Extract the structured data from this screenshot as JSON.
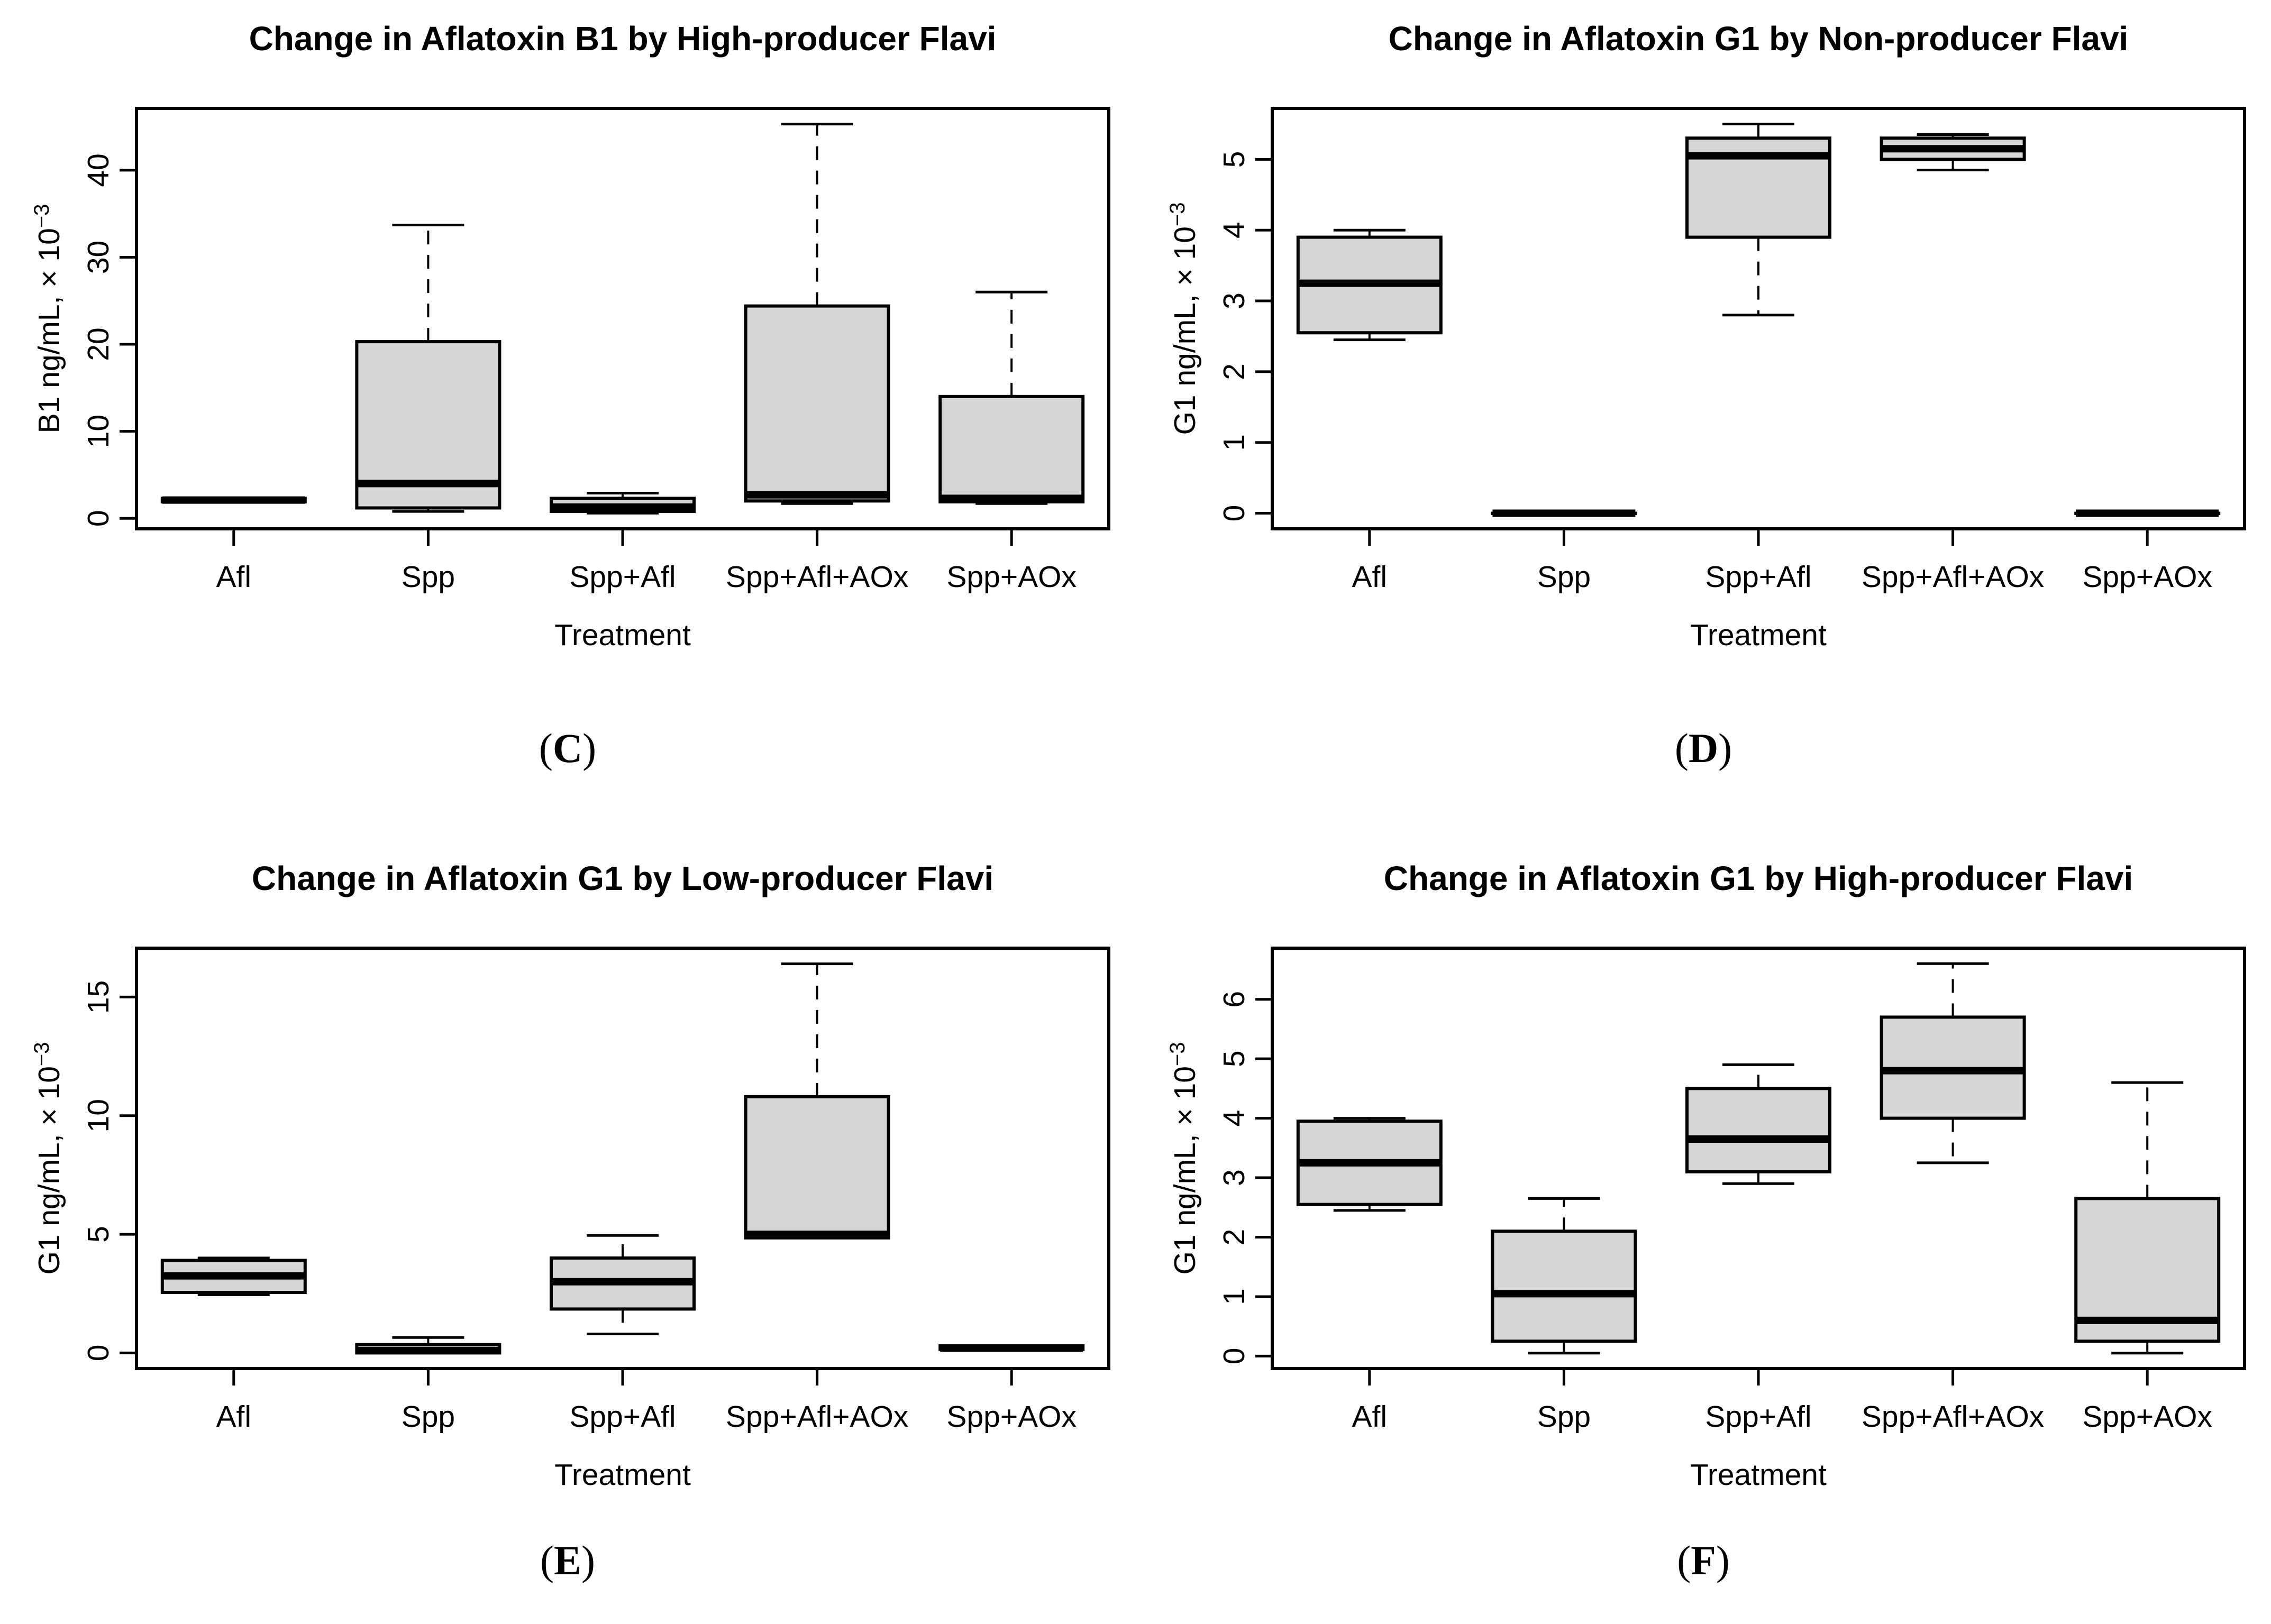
{
  "colors": {
    "background": "#ffffff",
    "box_fill": "#d6d6d6",
    "line": "#000000",
    "text": "#000000"
  },
  "chart_data": [
    {
      "id": "C",
      "type": "boxplot",
      "caption": {
        "open": "(",
        "letter": "C",
        "close": ")"
      },
      "title": "Change in Aflatoxin B1 by High-producer Flavi",
      "xlabel": "Treatment",
      "ylabel_prefix": "B1  ng/mL, × 10",
      "ylabel_exponent": "−3",
      "categories": [
        "Afl",
        "Spp",
        "Spp+Afl",
        "Spp+Afl+AOx",
        "Spp+AOx"
      ],
      "yticks": [
        0,
        10,
        20,
        30,
        40
      ],
      "ylim": [
        -1.2,
        47.1
      ],
      "grid": false,
      "boxes": [
        {
          "whisker_low": 1.9,
          "q1": 1.9,
          "median": 2.1,
          "q3": 2.3,
          "whisker_high": 2.3
        },
        {
          "whisker_low": 0.8,
          "q1": 1.2,
          "median": 4.0,
          "q3": 20.3,
          "whisker_high": 33.7
        },
        {
          "whisker_low": 0.6,
          "q1": 0.8,
          "median": 1.3,
          "q3": 2.3,
          "whisker_high": 2.9
        },
        {
          "whisker_low": 1.7,
          "q1": 2.0,
          "median": 2.7,
          "q3": 24.4,
          "whisker_high": 45.3
        },
        {
          "whisker_low": 1.7,
          "q1": 1.9,
          "median": 2.3,
          "q3": 14.0,
          "whisker_high": 26.0
        }
      ]
    },
    {
      "id": "D",
      "type": "boxplot",
      "caption": {
        "open": "(",
        "letter": "D",
        "close": ")"
      },
      "title": "Change in Aflatoxin G1 by Non-producer Flavi",
      "xlabel": "Treatment",
      "ylabel_prefix": "G1  ng/mL, × 10",
      "ylabel_exponent": "−3",
      "categories": [
        "Afl",
        "Spp",
        "Spp+Afl",
        "Spp+Afl+AOx",
        "Spp+AOx"
      ],
      "yticks": [
        0,
        1,
        2,
        3,
        4,
        5
      ],
      "ylim": [
        -0.22,
        5.72
      ],
      "grid": false,
      "boxes": [
        {
          "whisker_low": 2.45,
          "q1": 2.55,
          "median": 3.25,
          "q3": 3.9,
          "whisker_high": 4.0
        },
        {
          "whisker_low": 0.0,
          "q1": 0.0,
          "median": 0.0,
          "q3": 0.0,
          "whisker_high": 0.0
        },
        {
          "whisker_low": 2.8,
          "q1": 3.9,
          "median": 5.05,
          "q3": 5.3,
          "whisker_high": 5.5
        },
        {
          "whisker_low": 4.85,
          "q1": 5.0,
          "median": 5.15,
          "q3": 5.3,
          "whisker_high": 5.35
        },
        {
          "whisker_low": 0.0,
          "q1": 0.0,
          "median": 0.0,
          "q3": 0.0,
          "whisker_high": 0.0
        }
      ]
    },
    {
      "id": "E",
      "type": "boxplot",
      "caption": {
        "open": "(",
        "letter": "E",
        "close": ")"
      },
      "title": "Change in Aflatoxin G1 by Low-producer Flavi",
      "xlabel": "Treatment",
      "ylabel_prefix": "G1  ng/mL, × 10",
      "ylabel_exponent": "−3",
      "categories": [
        "Afl",
        "Spp",
        "Spp+Afl",
        "Spp+Afl+AOx",
        "Spp+AOx"
      ],
      "yticks": [
        0,
        5,
        10,
        15
      ],
      "ylim": [
        -0.66,
        17.06
      ],
      "grid": false,
      "boxes": [
        {
          "whisker_low": 2.45,
          "q1": 2.55,
          "median": 3.25,
          "q3": 3.9,
          "whisker_high": 4.0
        },
        {
          "whisker_low": 0.0,
          "q1": 0.0,
          "median": 0.1,
          "q3": 0.35,
          "whisker_high": 0.65
        },
        {
          "whisker_low": 0.8,
          "q1": 1.85,
          "median": 3.0,
          "q3": 4.0,
          "whisker_high": 4.95
        },
        {
          "whisker_low": 4.85,
          "q1": 4.85,
          "median": 5.0,
          "q3": 10.8,
          "whisker_high": 16.4
        },
        {
          "whisker_low": 0.15,
          "q1": 0.15,
          "median": 0.2,
          "q3": 0.3,
          "whisker_high": 0.3
        }
      ]
    },
    {
      "id": "F",
      "type": "boxplot",
      "caption": {
        "open": "(",
        "letter": "F",
        "close": ")"
      },
      "title": "Change in Aflatoxin G1 by High-producer Flavi",
      "xlabel": "Treatment",
      "ylabel_prefix": "G1  ng/mL, × 10",
      "ylabel_exponent": "−3",
      "categories": [
        "Afl",
        "Spp",
        "Spp+Afl",
        "Spp+Afl+AOx",
        "Spp+AOx"
      ],
      "yticks": [
        0,
        1,
        2,
        3,
        4,
        5,
        6
      ],
      "ylim": [
        -0.21,
        6.86
      ],
      "grid": false,
      "boxes": [
        {
          "whisker_low": 2.45,
          "q1": 2.55,
          "median": 3.25,
          "q3": 3.95,
          "whisker_high": 4.0
        },
        {
          "whisker_low": 0.05,
          "q1": 0.25,
          "median": 1.05,
          "q3": 2.1,
          "whisker_high": 2.65
        },
        {
          "whisker_low": 2.9,
          "q1": 3.1,
          "median": 3.65,
          "q3": 4.5,
          "whisker_high": 4.9
        },
        {
          "whisker_low": 3.25,
          "q1": 4.0,
          "median": 4.8,
          "q3": 5.7,
          "whisker_high": 6.6
        },
        {
          "whisker_low": 0.05,
          "q1": 0.25,
          "median": 0.6,
          "q3": 2.65,
          "whisker_high": 4.6
        }
      ]
    }
  ]
}
